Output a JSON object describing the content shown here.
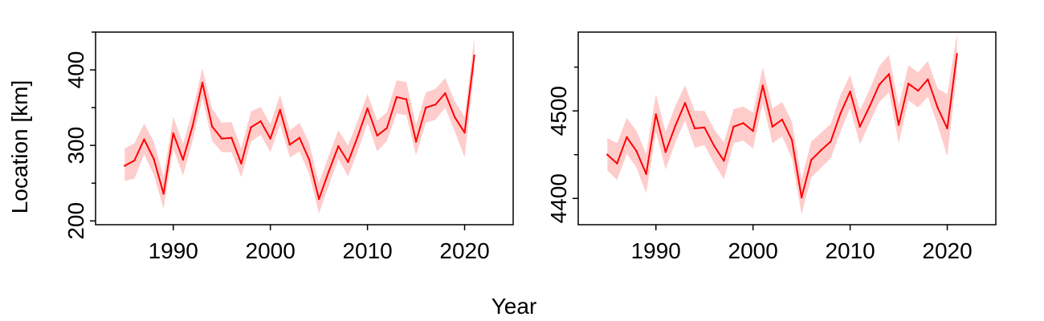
{
  "figure": {
    "ylabel": "Location [km]",
    "xlabel": "Year"
  },
  "chart_data": [
    {
      "type": "line",
      "title": "",
      "xlabel": "",
      "ylabel": "Location [km]",
      "xlim": [
        1982,
        2025
      ],
      "ylim": [
        195,
        450
      ],
      "x_ticks": [
        1990,
        2000,
        2010,
        2020
      ],
      "y_ticks": [
        200,
        300,
        400
      ],
      "y_minor_ticks": [
        250,
        350,
        450
      ],
      "grid": false,
      "line_color": "#ff0000",
      "band_color": "#ffcccc",
      "series": [
        {
          "x": [
            1985,
            1986,
            1987,
            1988,
            1989,
            1990,
            1991,
            1992,
            1993,
            1994,
            1995,
            1996,
            1997,
            1998,
            1999,
            2000,
            2001,
            2002,
            2003,
            2004,
            2005,
            2006,
            2007,
            2008,
            2009,
            2010,
            2011,
            2012,
            2013,
            2014,
            2015,
            2016,
            2017,
            2018,
            2019,
            2020,
            2021
          ],
          "values": [
            273,
            280,
            308,
            282,
            236,
            316,
            281,
            326,
            383,
            325,
            309,
            310,
            276,
            324,
            332,
            309,
            347,
            301,
            310,
            281,
            229,
            265,
            299,
            278,
            312,
            349,
            313,
            323,
            364,
            361,
            305,
            350,
            354,
            369,
            337,
            317,
            419
          ],
          "lower": [
            253,
            256,
            288,
            261,
            216,
            296,
            260,
            306,
            363,
            306,
            291,
            291,
            258,
            305,
            314,
            291,
            328,
            284,
            292,
            262,
            210,
            246,
            282,
            259,
            292,
            330,
            292,
            306,
            342,
            340,
            287,
            330,
            334,
            350,
            318,
            284,
            400
          ],
          "upper": [
            296,
            303,
            329,
            305,
            259,
            338,
            302,
            347,
            402,
            349,
            330,
            331,
            296,
            345,
            351,
            328,
            367,
            320,
            330,
            303,
            250,
            286,
            320,
            300,
            333,
            368,
            333,
            344,
            386,
            384,
            327,
            370,
            375,
            389,
            358,
            338,
            442
          ]
        }
      ]
    },
    {
      "type": "line",
      "title": "",
      "xlabel": "",
      "ylabel": "",
      "xlim": [
        1982,
        2025
      ],
      "ylim": [
        4370,
        4590
      ],
      "x_ticks": [
        1990,
        2000,
        2010,
        2020
      ],
      "y_ticks": [
        4400,
        4500
      ],
      "y_minor_ticks": [
        4450,
        4550
      ],
      "grid": false,
      "line_color": "#ff0000",
      "band_color": "#ffcccc",
      "series": [
        {
          "x": [
            1985,
            1986,
            1987,
            1988,
            1989,
            1990,
            1991,
            1992,
            1993,
            1994,
            1995,
            1996,
            1997,
            1998,
            1999,
            2000,
            2001,
            2002,
            2003,
            2004,
            2005,
            2006,
            2007,
            2008,
            2009,
            2010,
            2011,
            2012,
            2013,
            2014,
            2015,
            2016,
            2017,
            2018,
            2019,
            2020,
            2021
          ],
          "values": [
            4450,
            4440,
            4470,
            4454,
            4428,
            4496,
            4453,
            4483,
            4509,
            4480,
            4481,
            4460,
            4443,
            4482,
            4486,
            4477,
            4529,
            4482,
            4490,
            4467,
            4401,
            4444,
            4455,
            4465,
            4497,
            4522,
            4482,
            4505,
            4530,
            4542,
            4484,
            4531,
            4523,
            4536,
            4504,
            4480,
            4565
          ],
          "lower": [
            4432,
            4421,
            4451,
            4435,
            4406,
            4476,
            4433,
            4464,
            4489,
            4458,
            4461,
            4440,
            4422,
            4463,
            4466,
            4457,
            4509,
            4463,
            4471,
            4446,
            4382,
            4424,
            4435,
            4446,
            4476,
            4503,
            4462,
            4486,
            4510,
            4521,
            4463,
            4512,
            4504,
            4516,
            4484,
            4448,
            4545
          ],
          "upper": [
            4469,
            4463,
            4492,
            4477,
            4451,
            4519,
            4476,
            4506,
            4529,
            4500,
            4500,
            4479,
            4464,
            4502,
            4505,
            4498,
            4550,
            4503,
            4510,
            4488,
            4422,
            4465,
            4475,
            4485,
            4518,
            4541,
            4501,
            4524,
            4551,
            4564,
            4506,
            4552,
            4544,
            4557,
            4526,
            4519,
            4588
          ]
        }
      ]
    }
  ]
}
